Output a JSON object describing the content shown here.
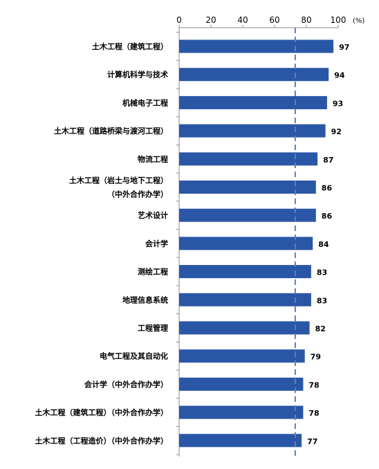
{
  "chart_data": {
    "type": "bar",
    "orientation": "horizontal",
    "categories": [
      [
        "土木工程（建筑工程）"
      ],
      [
        "计算机科学与技术"
      ],
      [
        "机械电子工程"
      ],
      [
        "土木工程（道路桥梁与渡河工程）"
      ],
      [
        "物流工程"
      ],
      [
        "土木工程（岩土与地下工程）",
        "（中外合作办学）"
      ],
      [
        "艺术设计"
      ],
      [
        "会计学"
      ],
      [
        "测绘工程"
      ],
      [
        "地理信息系统"
      ],
      [
        "工程管理"
      ],
      [
        "电气工程及其自动化"
      ],
      [
        "会计学（中外合作办学）"
      ],
      [
        "土木工程（建筑工程）（中外合作办学）"
      ],
      [
        "土木工程（工程造价）（中外合作办学）"
      ]
    ],
    "values": [
      97,
      94,
      93,
      92,
      87,
      86,
      86,
      84,
      83,
      83,
      82,
      79,
      78,
      78,
      77
    ],
    "xlim": [
      0,
      100
    ],
    "xticks": [
      0,
      20,
      40,
      60,
      80,
      100
    ],
    "xaxis_position": "top",
    "unit": "(%)",
    "reference_line": 73,
    "bar_color": "#2a56a6",
    "reference_line_color": "#5b7fbf",
    "title": "",
    "xlabel": "",
    "ylabel": "",
    "grid": false,
    "legend": "none"
  }
}
